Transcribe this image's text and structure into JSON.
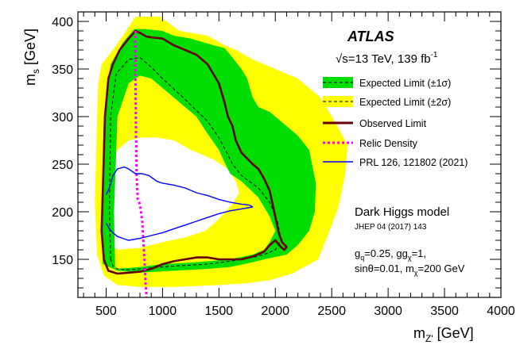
{
  "chart_data": {
    "type": "line",
    "experiment": "ATLAS",
    "energy_text": "√s=13 TeV, 139 fb",
    "energy_sup": "-1",
    "x_label": {
      "main": "m",
      "sub": "Z'",
      "unit": " [GeV]"
    },
    "y_label": {
      "main": "m",
      "sub": "s",
      "unit": " [GeV]"
    },
    "xlim": [
      250,
      4000
    ],
    "ylim": [
      110,
      410
    ],
    "x_ticks": [
      500,
      1000,
      1500,
      2000,
      2500,
      3000,
      3500,
      4000
    ],
    "y_ticks": [
      150,
      200,
      250,
      300,
      350,
      400
    ],
    "legend": [
      {
        "key": "green",
        "label": "Expected Limit (±1σ)"
      },
      {
        "key": "yellow",
        "label": "Expected Limit (±2σ)"
      },
      {
        "key": "observed",
        "label": "Observed Limit"
      },
      {
        "key": "relic",
        "label": "Relic Density"
      },
      {
        "key": "prl",
        "label": "PRL 126, 121802 (2021)"
      }
    ],
    "model_title": "Dark Higgs model",
    "model_ref": "JHEP 04 (2017) 143",
    "params_line1": {
      "gq": "=0.25, g",
      "gchi": "=1,"
    },
    "params_line2": {
      "text": "sinθ=0.01, m",
      "mchi": "=200 GeV"
    },
    "colors": {
      "yellow": "#ffff00",
      "green": "#00dd00",
      "observed": "#660000",
      "relic": "#ff00ff",
      "prl": "#0000ff",
      "expected": "#000000"
    },
    "series": {
      "yellow_band": {
        "outer": [
          [
            420,
            155
          ],
          [
            400,
            210
          ],
          [
            420,
            300
          ],
          [
            430,
            335
          ],
          [
            460,
            355
          ],
          [
            560,
            370
          ],
          [
            650,
            385
          ],
          [
            760,
            405
          ],
          [
            850,
            405
          ],
          [
            980,
            405
          ],
          [
            1150,
            390
          ],
          [
            1400,
            385
          ],
          [
            1550,
            375
          ],
          [
            1650,
            370
          ],
          [
            1800,
            360
          ],
          [
            2000,
            350
          ],
          [
            2200,
            340
          ],
          [
            2400,
            320
          ],
          [
            2550,
            290
          ],
          [
            2640,
            270
          ],
          [
            2620,
            240
          ],
          [
            2560,
            205
          ],
          [
            2480,
            180
          ],
          [
            2380,
            150
          ],
          [
            2150,
            135
          ],
          [
            1950,
            128
          ],
          [
            1750,
            125
          ],
          [
            1500,
            123
          ],
          [
            1100,
            121
          ],
          [
            800,
            121
          ],
          [
            600,
            123
          ],
          [
            480,
            133
          ]
        ],
        "inner": [
          [
            480,
            170
          ],
          [
            490,
            210
          ],
          [
            520,
            245
          ],
          [
            600,
            265
          ],
          [
            700,
            275
          ],
          [
            820,
            278
          ],
          [
            950,
            278
          ],
          [
            1100,
            275
          ],
          [
            1250,
            265
          ],
          [
            1450,
            255
          ],
          [
            1580,
            245
          ],
          [
            1650,
            232
          ],
          [
            1680,
            220
          ],
          [
            1630,
            210
          ],
          [
            1560,
            200
          ],
          [
            1480,
            190
          ],
          [
            1380,
            180
          ],
          [
            1200,
            173
          ],
          [
            1000,
            168
          ],
          [
            800,
            162
          ],
          [
            600,
            160
          ]
        ]
      },
      "green_band": {
        "outer": [
          [
            470,
            145
          ],
          [
            460,
            200
          ],
          [
            480,
            300
          ],
          [
            540,
            355
          ],
          [
            650,
            378
          ],
          [
            750,
            392
          ],
          [
            850,
            392
          ],
          [
            1000,
            390
          ],
          [
            1100,
            385
          ],
          [
            1250,
            382
          ],
          [
            1450,
            375
          ],
          [
            1550,
            372
          ],
          [
            1600,
            365
          ],
          [
            1700,
            350
          ],
          [
            1750,
            340
          ],
          [
            1800,
            320
          ],
          [
            1850,
            310
          ],
          [
            1950,
            305
          ],
          [
            2050,
            295
          ],
          [
            2200,
            280
          ],
          [
            2300,
            265
          ],
          [
            2360,
            230
          ],
          [
            2350,
            200
          ],
          [
            2300,
            180
          ],
          [
            2200,
            165
          ],
          [
            2100,
            155
          ],
          [
            1900,
            150
          ],
          [
            1800,
            147
          ],
          [
            1600,
            142
          ],
          [
            1400,
            140
          ],
          [
            1100,
            138
          ],
          [
            800,
            136
          ],
          [
            600,
            138
          ]
        ],
        "inner": [
          [
            580,
            140
          ],
          [
            570,
            200
          ],
          [
            600,
            300
          ],
          [
            700,
            335
          ],
          [
            800,
            343
          ],
          [
            900,
            340
          ],
          [
            1000,
            330
          ],
          [
            1100,
            320
          ],
          [
            1200,
            310
          ],
          [
            1300,
            300
          ],
          [
            1400,
            282
          ],
          [
            1500,
            265
          ],
          [
            1550,
            252
          ],
          [
            1600,
            240
          ],
          [
            1700,
            232
          ],
          [
            1850,
            215
          ],
          [
            1950,
            195
          ],
          [
            2000,
            180
          ],
          [
            1950,
            168
          ],
          [
            1900,
            160
          ],
          [
            1800,
            155
          ],
          [
            1600,
            150
          ],
          [
            1300,
            147
          ],
          [
            1000,
            145
          ],
          [
            800,
            142
          ]
        ]
      },
      "expected": [
        [
          540,
          150
        ],
        [
          530,
          200
        ],
        [
          540,
          300
        ],
        [
          590,
          345
        ],
        [
          700,
          360
        ],
        [
          800,
          362
        ],
        [
          900,
          352
        ],
        [
          1000,
          340
        ],
        [
          1200,
          318
        ],
        [
          1400,
          295
        ],
        [
          1500,
          278
        ],
        [
          1570,
          262
        ],
        [
          1620,
          250
        ],
        [
          1700,
          238
        ],
        [
          1850,
          225
        ],
        [
          1950,
          210
        ],
        [
          2020,
          190
        ],
        [
          2050,
          170
        ],
        [
          2000,
          160
        ],
        [
          1900,
          155
        ],
        [
          1800,
          152
        ],
        [
          1600,
          148
        ],
        [
          1400,
          145
        ],
        [
          1100,
          143
        ],
        [
          900,
          141
        ],
        [
          700,
          139
        ],
        [
          600,
          140
        ],
        [
          560,
          143
        ],
        [
          540,
          150
        ]
      ],
      "observed": [
        [
          480,
          150
        ],
        [
          460,
          180
        ],
        [
          490,
          300
        ],
        [
          520,
          340
        ],
        [
          560,
          355
        ],
        [
          620,
          370
        ],
        [
          700,
          382
        ],
        [
          760,
          390
        ],
        [
          800,
          388
        ],
        [
          860,
          384
        ],
        [
          920,
          383
        ],
        [
          1000,
          382
        ],
        [
          1100,
          375
        ],
        [
          1200,
          370
        ],
        [
          1300,
          365
        ],
        [
          1400,
          355
        ],
        [
          1450,
          345
        ],
        [
          1500,
          335
        ],
        [
          1550,
          315
        ],
        [
          1580,
          300
        ],
        [
          1620,
          290
        ],
        [
          1650,
          275
        ],
        [
          1700,
          262
        ],
        [
          1750,
          256
        ],
        [
          1800,
          250
        ],
        [
          1850,
          245
        ],
        [
          1900,
          235
        ],
        [
          1950,
          222
        ],
        [
          2000,
          195
        ],
        [
          2030,
          178
        ],
        [
          2060,
          168
        ],
        [
          2100,
          163
        ],
        [
          2080,
          160
        ],
        [
          2050,
          163
        ],
        [
          2000,
          170
        ],
        [
          1950,
          165
        ],
        [
          1900,
          158
        ],
        [
          1800,
          153
        ],
        [
          1700,
          150
        ],
        [
          1600,
          150
        ],
        [
          1500,
          150
        ],
        [
          1400,
          152
        ],
        [
          1300,
          152
        ],
        [
          1200,
          150
        ],
        [
          1100,
          148
        ],
        [
          1000,
          145
        ],
        [
          900,
          140
        ],
        [
          800,
          137
        ],
        [
          700,
          136
        ],
        [
          600,
          135
        ],
        [
          520,
          138
        ],
        [
          480,
          150
        ]
      ],
      "relic": [
        [
          760,
          390
        ],
        [
          760,
          340
        ],
        [
          765,
          280
        ],
        [
          770,
          240
        ],
        [
          780,
          213
        ],
        [
          800,
          208
        ],
        [
          820,
          190
        ],
        [
          830,
          170
        ],
        [
          840,
          150
        ],
        [
          850,
          125
        ],
        [
          860,
          110
        ]
      ],
      "prl_upper": [
        [
          500,
          218
        ],
        [
          530,
          225
        ],
        [
          560,
          238
        ],
        [
          600,
          245
        ],
        [
          660,
          247
        ],
        [
          700,
          245
        ],
        [
          760,
          240
        ],
        [
          820,
          240
        ],
        [
          880,
          238
        ],
        [
          950,
          232
        ],
        [
          1000,
          230
        ],
        [
          1100,
          228
        ],
        [
          1200,
          225
        ],
        [
          1300,
          220
        ],
        [
          1400,
          217
        ],
        [
          1500,
          213
        ],
        [
          1600,
          210
        ],
        [
          1700,
          208
        ],
        [
          1770,
          207
        ],
        [
          1800,
          205
        ]
      ],
      "prl_lower": [
        [
          500,
          188
        ],
        [
          530,
          182
        ],
        [
          560,
          178
        ],
        [
          600,
          174
        ],
        [
          650,
          172
        ],
        [
          700,
          170
        ],
        [
          800,
          172
        ],
        [
          900,
          175
        ],
        [
          1000,
          178
        ],
        [
          1100,
          182
        ],
        [
          1200,
          186
        ],
        [
          1300,
          190
        ],
        [
          1400,
          194
        ],
        [
          1500,
          198
        ],
        [
          1600,
          201
        ],
        [
          1700,
          203
        ],
        [
          1800,
          205
        ]
      ]
    }
  }
}
